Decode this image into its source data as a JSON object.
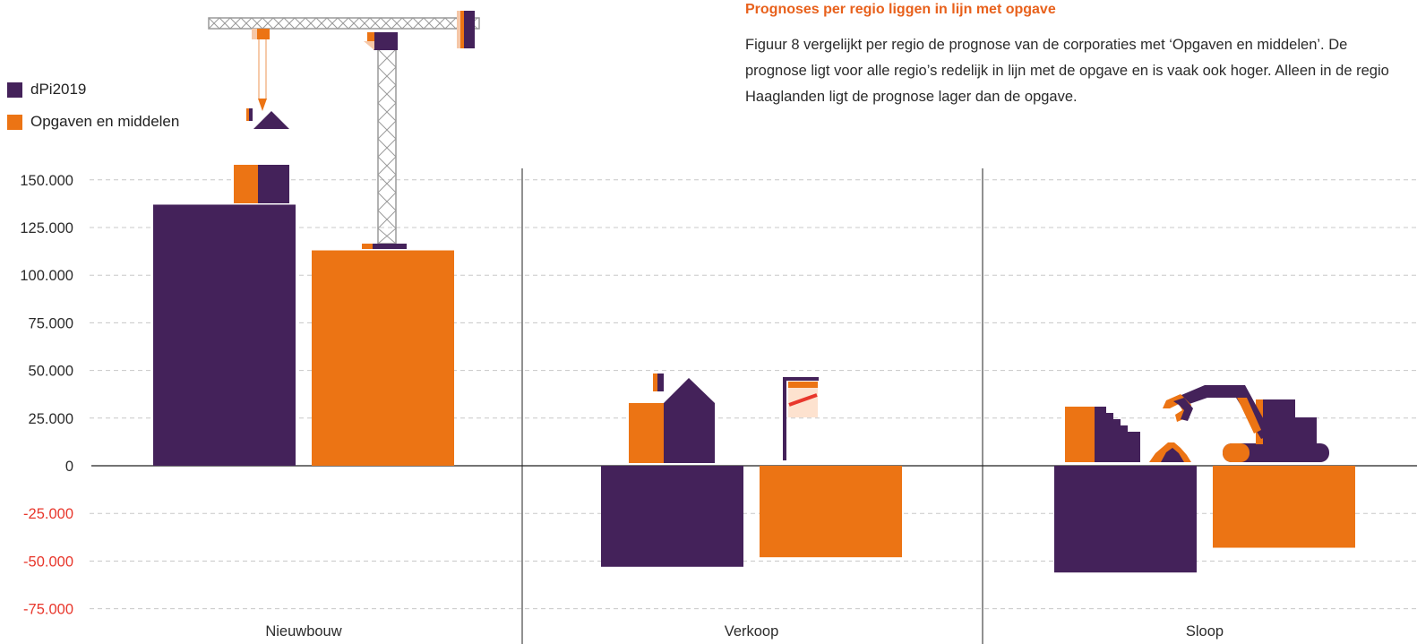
{
  "heading": "Prognoses per regio liggen in lijn met opgave",
  "paragraph": "Figuur 8 vergelijkt per regio de prognose van de corporaties met ‘Opgaven en middelen’. De prognose ligt voor alle regio’s redelijk in lijn met de opgave en is vaak ook hoger. Alleen in de regio Haaglanden ligt de prognose lager dan de opgave.",
  "colors": {
    "dpi": "#44225a",
    "opgaven": "#ec7414",
    "negative_tick": "#e8372c",
    "grid": "#c8c8c8"
  },
  "chart_data": {
    "type": "bar",
    "categories": [
      "Nieuwbouw",
      "Verkoop",
      "Sloop"
    ],
    "series": [
      {
        "name": "dPi2019",
        "values": [
          137000,
          -53000,
          -56000
        ]
      },
      {
        "name": "Opgaven en middelen",
        "values": [
          113000,
          -48000,
          -43000
        ]
      }
    ],
    "yticks": [
      150000,
      125000,
      100000,
      75000,
      50000,
      25000,
      0,
      -25000,
      -50000,
      -75000
    ],
    "ytick_labels": [
      "150.000",
      "125.000",
      "100.000",
      "75.000",
      "50.000",
      "25.000",
      "0",
      "-25.000",
      "-50.000",
      "-75.000"
    ],
    "ylim": [
      -75000,
      150000
    ],
    "grid": true,
    "legend_position": "top-left"
  }
}
